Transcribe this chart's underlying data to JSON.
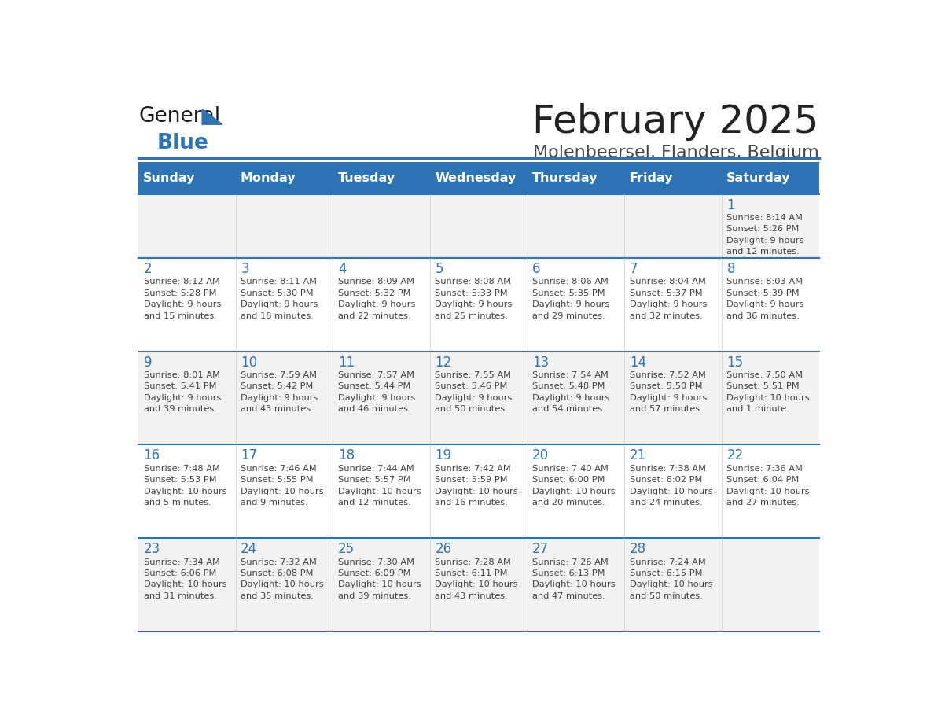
{
  "title": "February 2025",
  "subtitle": "Molenbeersel, Flanders, Belgium",
  "days_of_week": [
    "Sunday",
    "Monday",
    "Tuesday",
    "Wednesday",
    "Thursday",
    "Friday",
    "Saturday"
  ],
  "header_bg": "#2E74B5",
  "header_text_color": "#FFFFFF",
  "row_bg_even": "#F2F2F2",
  "row_bg_odd": "#FFFFFF",
  "separator_color": "#2E74B5",
  "day_num_color": "#2E74B5",
  "info_text_color": "#404040",
  "title_color": "#222222",
  "subtitle_color": "#444444",
  "logo_general_color": "#1a1a1a",
  "logo_blue_color": "#2E74B5",
  "calendar": [
    [
      {
        "day": null,
        "info": null
      },
      {
        "day": null,
        "info": null
      },
      {
        "day": null,
        "info": null
      },
      {
        "day": null,
        "info": null
      },
      {
        "day": null,
        "info": null
      },
      {
        "day": null,
        "info": null
      },
      {
        "day": 1,
        "info": "Sunrise: 8:14 AM\nSunset: 5:26 PM\nDaylight: 9 hours\nand 12 minutes."
      }
    ],
    [
      {
        "day": 2,
        "info": "Sunrise: 8:12 AM\nSunset: 5:28 PM\nDaylight: 9 hours\nand 15 minutes."
      },
      {
        "day": 3,
        "info": "Sunrise: 8:11 AM\nSunset: 5:30 PM\nDaylight: 9 hours\nand 18 minutes."
      },
      {
        "day": 4,
        "info": "Sunrise: 8:09 AM\nSunset: 5:32 PM\nDaylight: 9 hours\nand 22 minutes."
      },
      {
        "day": 5,
        "info": "Sunrise: 8:08 AM\nSunset: 5:33 PM\nDaylight: 9 hours\nand 25 minutes."
      },
      {
        "day": 6,
        "info": "Sunrise: 8:06 AM\nSunset: 5:35 PM\nDaylight: 9 hours\nand 29 minutes."
      },
      {
        "day": 7,
        "info": "Sunrise: 8:04 AM\nSunset: 5:37 PM\nDaylight: 9 hours\nand 32 minutes."
      },
      {
        "day": 8,
        "info": "Sunrise: 8:03 AM\nSunset: 5:39 PM\nDaylight: 9 hours\nand 36 minutes."
      }
    ],
    [
      {
        "day": 9,
        "info": "Sunrise: 8:01 AM\nSunset: 5:41 PM\nDaylight: 9 hours\nand 39 minutes."
      },
      {
        "day": 10,
        "info": "Sunrise: 7:59 AM\nSunset: 5:42 PM\nDaylight: 9 hours\nand 43 minutes."
      },
      {
        "day": 11,
        "info": "Sunrise: 7:57 AM\nSunset: 5:44 PM\nDaylight: 9 hours\nand 46 minutes."
      },
      {
        "day": 12,
        "info": "Sunrise: 7:55 AM\nSunset: 5:46 PM\nDaylight: 9 hours\nand 50 minutes."
      },
      {
        "day": 13,
        "info": "Sunrise: 7:54 AM\nSunset: 5:48 PM\nDaylight: 9 hours\nand 54 minutes."
      },
      {
        "day": 14,
        "info": "Sunrise: 7:52 AM\nSunset: 5:50 PM\nDaylight: 9 hours\nand 57 minutes."
      },
      {
        "day": 15,
        "info": "Sunrise: 7:50 AM\nSunset: 5:51 PM\nDaylight: 10 hours\nand 1 minute."
      }
    ],
    [
      {
        "day": 16,
        "info": "Sunrise: 7:48 AM\nSunset: 5:53 PM\nDaylight: 10 hours\nand 5 minutes."
      },
      {
        "day": 17,
        "info": "Sunrise: 7:46 AM\nSunset: 5:55 PM\nDaylight: 10 hours\nand 9 minutes."
      },
      {
        "day": 18,
        "info": "Sunrise: 7:44 AM\nSunset: 5:57 PM\nDaylight: 10 hours\nand 12 minutes."
      },
      {
        "day": 19,
        "info": "Sunrise: 7:42 AM\nSunset: 5:59 PM\nDaylight: 10 hours\nand 16 minutes."
      },
      {
        "day": 20,
        "info": "Sunrise: 7:40 AM\nSunset: 6:00 PM\nDaylight: 10 hours\nand 20 minutes."
      },
      {
        "day": 21,
        "info": "Sunrise: 7:38 AM\nSunset: 6:02 PM\nDaylight: 10 hours\nand 24 minutes."
      },
      {
        "day": 22,
        "info": "Sunrise: 7:36 AM\nSunset: 6:04 PM\nDaylight: 10 hours\nand 27 minutes."
      }
    ],
    [
      {
        "day": 23,
        "info": "Sunrise: 7:34 AM\nSunset: 6:06 PM\nDaylight: 10 hours\nand 31 minutes."
      },
      {
        "day": 24,
        "info": "Sunrise: 7:32 AM\nSunset: 6:08 PM\nDaylight: 10 hours\nand 35 minutes."
      },
      {
        "day": 25,
        "info": "Sunrise: 7:30 AM\nSunset: 6:09 PM\nDaylight: 10 hours\nand 39 minutes."
      },
      {
        "day": 26,
        "info": "Sunrise: 7:28 AM\nSunset: 6:11 PM\nDaylight: 10 hours\nand 43 minutes."
      },
      {
        "day": 27,
        "info": "Sunrise: 7:26 AM\nSunset: 6:13 PM\nDaylight: 10 hours\nand 47 minutes."
      },
      {
        "day": 28,
        "info": "Sunrise: 7:24 AM\nSunset: 6:15 PM\nDaylight: 10 hours\nand 50 minutes."
      },
      {
        "day": null,
        "info": null
      }
    ]
  ]
}
